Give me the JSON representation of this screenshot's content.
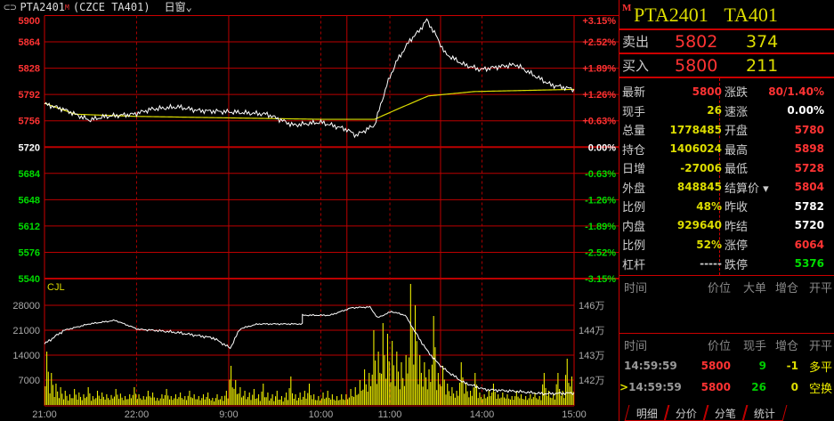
{
  "title": {
    "symbol": "PTA2401",
    "market_badge": "M",
    "exchange_code": "(CZCE TA401)",
    "window_menu": "日窗"
  },
  "quote": {
    "header_badge": "M",
    "header_name": "PTA2401",
    "header_code": "TA401",
    "ask": {
      "label": "卖出",
      "price": "5802",
      "volume": "374"
    },
    "bid": {
      "label": "买入",
      "price": "5800",
      "volume": "211"
    },
    "left": [
      {
        "label": "最新",
        "value": "5800",
        "color": "#ff3333"
      },
      {
        "label": "现手",
        "value": "26",
        "color": "#dddd00"
      },
      {
        "label": "总量",
        "value": "1778485",
        "color": "#dddd00"
      },
      {
        "label": "持仓",
        "value": "1406024",
        "color": "#dddd00"
      },
      {
        "label": "日增",
        "value": "-27006",
        "color": "#dddd00"
      },
      {
        "label": "外盘",
        "value": "848845",
        "color": "#dddd00"
      },
      {
        "label": "比例",
        "value": "48%",
        "color": "#dddd00"
      },
      {
        "label": "内盘",
        "value": "929640",
        "color": "#dddd00"
      },
      {
        "label": "比例",
        "value": "52%",
        "color": "#dddd00"
      },
      {
        "label": "杠杆",
        "value": "-----",
        "color": "#cccccc"
      }
    ],
    "right": [
      {
        "label": "涨跌",
        "value": "80/1.40%",
        "color": "#ff3333"
      },
      {
        "label": "速涨",
        "value": "0.00%",
        "color": "#ffffff"
      },
      {
        "label": "开盘",
        "value": "5780",
        "color": "#ff3333"
      },
      {
        "label": "最高",
        "value": "5898",
        "color": "#ff3333"
      },
      {
        "label": "最低",
        "value": "5728",
        "color": "#ff3333"
      },
      {
        "label": "结算价 ▾",
        "value": "5804",
        "color": "#ff3333"
      },
      {
        "label": "昨收",
        "value": "5782",
        "color": "#ffffff"
      },
      {
        "label": "昨结",
        "value": "5720",
        "color": "#ffffff"
      },
      {
        "label": "涨停",
        "value": "6064",
        "color": "#ff3333"
      },
      {
        "label": "跌停",
        "value": "5376",
        "color": "#00dd00"
      }
    ]
  },
  "bigorders": {
    "headers": [
      "时间",
      "价位",
      "大单",
      "增仓",
      "开平"
    ]
  },
  "ticks": {
    "headers": [
      "时间",
      "价位",
      "现手",
      "增仓",
      "开平"
    ],
    "rows": [
      {
        "marker": "",
        "time": "14:59:59",
        "price": "5800",
        "vol": "9",
        "oi": "-1",
        "type": "多平"
      },
      {
        "marker": ">",
        "time": "14:59:59",
        "price": "5800",
        "vol": "26",
        "oi": "0",
        "type": "空换"
      }
    ]
  },
  "tabs": [
    "明细",
    "分价",
    "分笔",
    "统计"
  ],
  "chart_data": [
    {
      "type": "line",
      "name_label": "",
      "price_ticks": [
        5900,
        5864,
        5828,
        5792,
        5756,
        5720,
        5684,
        5648,
        5612,
        5576,
        5540
      ],
      "pct_ticks": [
        "+3.15%",
        "+2.52%",
        "+1.89%",
        "+1.26%",
        "+0.63%",
        "0.00%",
        "-0.63%",
        "-1.26%",
        "-1.89%",
        "-2.52%",
        "-3.15%"
      ],
      "ylim": [
        5540,
        5900
      ],
      "base": 5720,
      "x_labels": [
        {
          "label": "21:00",
          "minute": 0
        },
        {
          "label": "22:00",
          "minute": 60
        },
        {
          "label": "9:00",
          "minute": 120
        },
        {
          "label": "10:00",
          "minute": 180
        },
        {
          "label": "11:00",
          "minute": 225
        },
        {
          "label": "14:00",
          "minute": 285
        },
        {
          "label": "15:00",
          "minute": 345
        }
      ],
      "session_breaks": [
        120,
        197,
        258
      ],
      "price": [
        [
          0,
          5779
        ],
        [
          12,
          5772
        ],
        [
          29,
          5757
        ],
        [
          40,
          5762
        ],
        [
          58,
          5765
        ],
        [
          70,
          5772
        ],
        [
          87,
          5775
        ],
        [
          100,
          5770
        ],
        [
          122,
          5768
        ],
        [
          145,
          5765
        ],
        [
          162,
          5750
        ],
        [
          180,
          5754
        ],
        [
          197,
          5744
        ],
        [
          203,
          5736
        ],
        [
          215,
          5750
        ],
        [
          223,
          5805
        ],
        [
          229,
          5836
        ],
        [
          238,
          5866
        ],
        [
          244,
          5879
        ],
        [
          249,
          5894
        ],
        [
          255,
          5873
        ],
        [
          261,
          5848
        ],
        [
          273,
          5833
        ],
        [
          284,
          5826
        ],
        [
          296,
          5830
        ],
        [
          307,
          5833
        ],
        [
          319,
          5818
        ],
        [
          330,
          5805
        ],
        [
          345,
          5799
        ]
      ],
      "avg_price": [
        [
          0,
          5780
        ],
        [
          20,
          5765
        ],
        [
          60,
          5762
        ],
        [
          120,
          5760
        ],
        [
          180,
          5758
        ],
        [
          215,
          5758
        ],
        [
          230,
          5772
        ],
        [
          250,
          5790
        ],
        [
          280,
          5796
        ],
        [
          345,
          5799
        ]
      ]
    },
    {
      "type": "bar",
      "label": "CJL",
      "ylim": [
        0,
        35000
      ],
      "y_ticks": [
        28000,
        21000,
        14000,
        7000
      ],
      "oi_ticks": [
        "146万",
        "144万",
        "143万",
        "142万"
      ],
      "volume_interval_minutes": 3,
      "volume": [
        15000,
        9000,
        6000,
        5000,
        4000,
        3000,
        4500,
        3500,
        3000,
        5000,
        2500,
        4000,
        3500,
        3000,
        2800,
        4500,
        3200,
        2500,
        3000,
        5000,
        3000,
        2500,
        4000,
        3500,
        2000,
        3000,
        4500,
        2500,
        3000,
        3500,
        2500,
        4000,
        3000,
        2500,
        3000,
        3500,
        2000,
        3000,
        2500,
        4000,
        11000,
        7000,
        5000,
        4000,
        3500,
        4500,
        3000,
        6000,
        3500,
        3000,
        4000,
        2500,
        3500,
        8000,
        3000,
        3500,
        4000,
        6000,
        3000,
        2500,
        3500,
        4000,
        3000,
        2500,
        3000,
        3000,
        4500,
        5000,
        7000,
        10000,
        9000,
        21000,
        15000,
        23000,
        20000,
        18000,
        15000,
        12000,
        14000,
        34000,
        28000,
        14000,
        12000,
        10000,
        25000,
        9000,
        11000,
        6000,
        5000,
        4000,
        12000,
        6000,
        4000,
        9000,
        3500,
        3000,
        4000,
        6000,
        3000,
        3500,
        3000,
        2500,
        4000,
        3000,
        2500,
        3000,
        3500,
        2500,
        9000,
        4000,
        3000,
        9000,
        4000,
        13000,
        8000
      ],
      "open_interest_wan": [
        [
          0,
          143.45
        ],
        [
          12,
          143.97
        ],
        [
          29,
          144.5
        ],
        [
          46,
          144.79
        ],
        [
          61,
          144.07
        ],
        [
          87,
          143.9
        ],
        [
          110,
          143.69
        ],
        [
          121,
          143.28
        ],
        [
          128,
          144.14
        ],
        [
          139,
          144.5
        ],
        [
          168,
          144.5
        ],
        [
          168,
          145.2
        ],
        [
          186,
          145.2
        ],
        [
          200,
          145.8
        ],
        [
          212,
          145.86
        ],
        [
          217,
          145.0
        ],
        [
          226,
          145.5
        ],
        [
          235,
          145.2
        ],
        [
          241,
          143.97
        ],
        [
          249,
          143.2
        ],
        [
          255,
          142.76
        ],
        [
          261,
          142.41
        ],
        [
          273,
          141.9
        ],
        [
          287,
          141.62
        ],
        [
          307,
          141.55
        ],
        [
          325,
          141.45
        ],
        [
          345,
          141.48
        ]
      ]
    }
  ]
}
